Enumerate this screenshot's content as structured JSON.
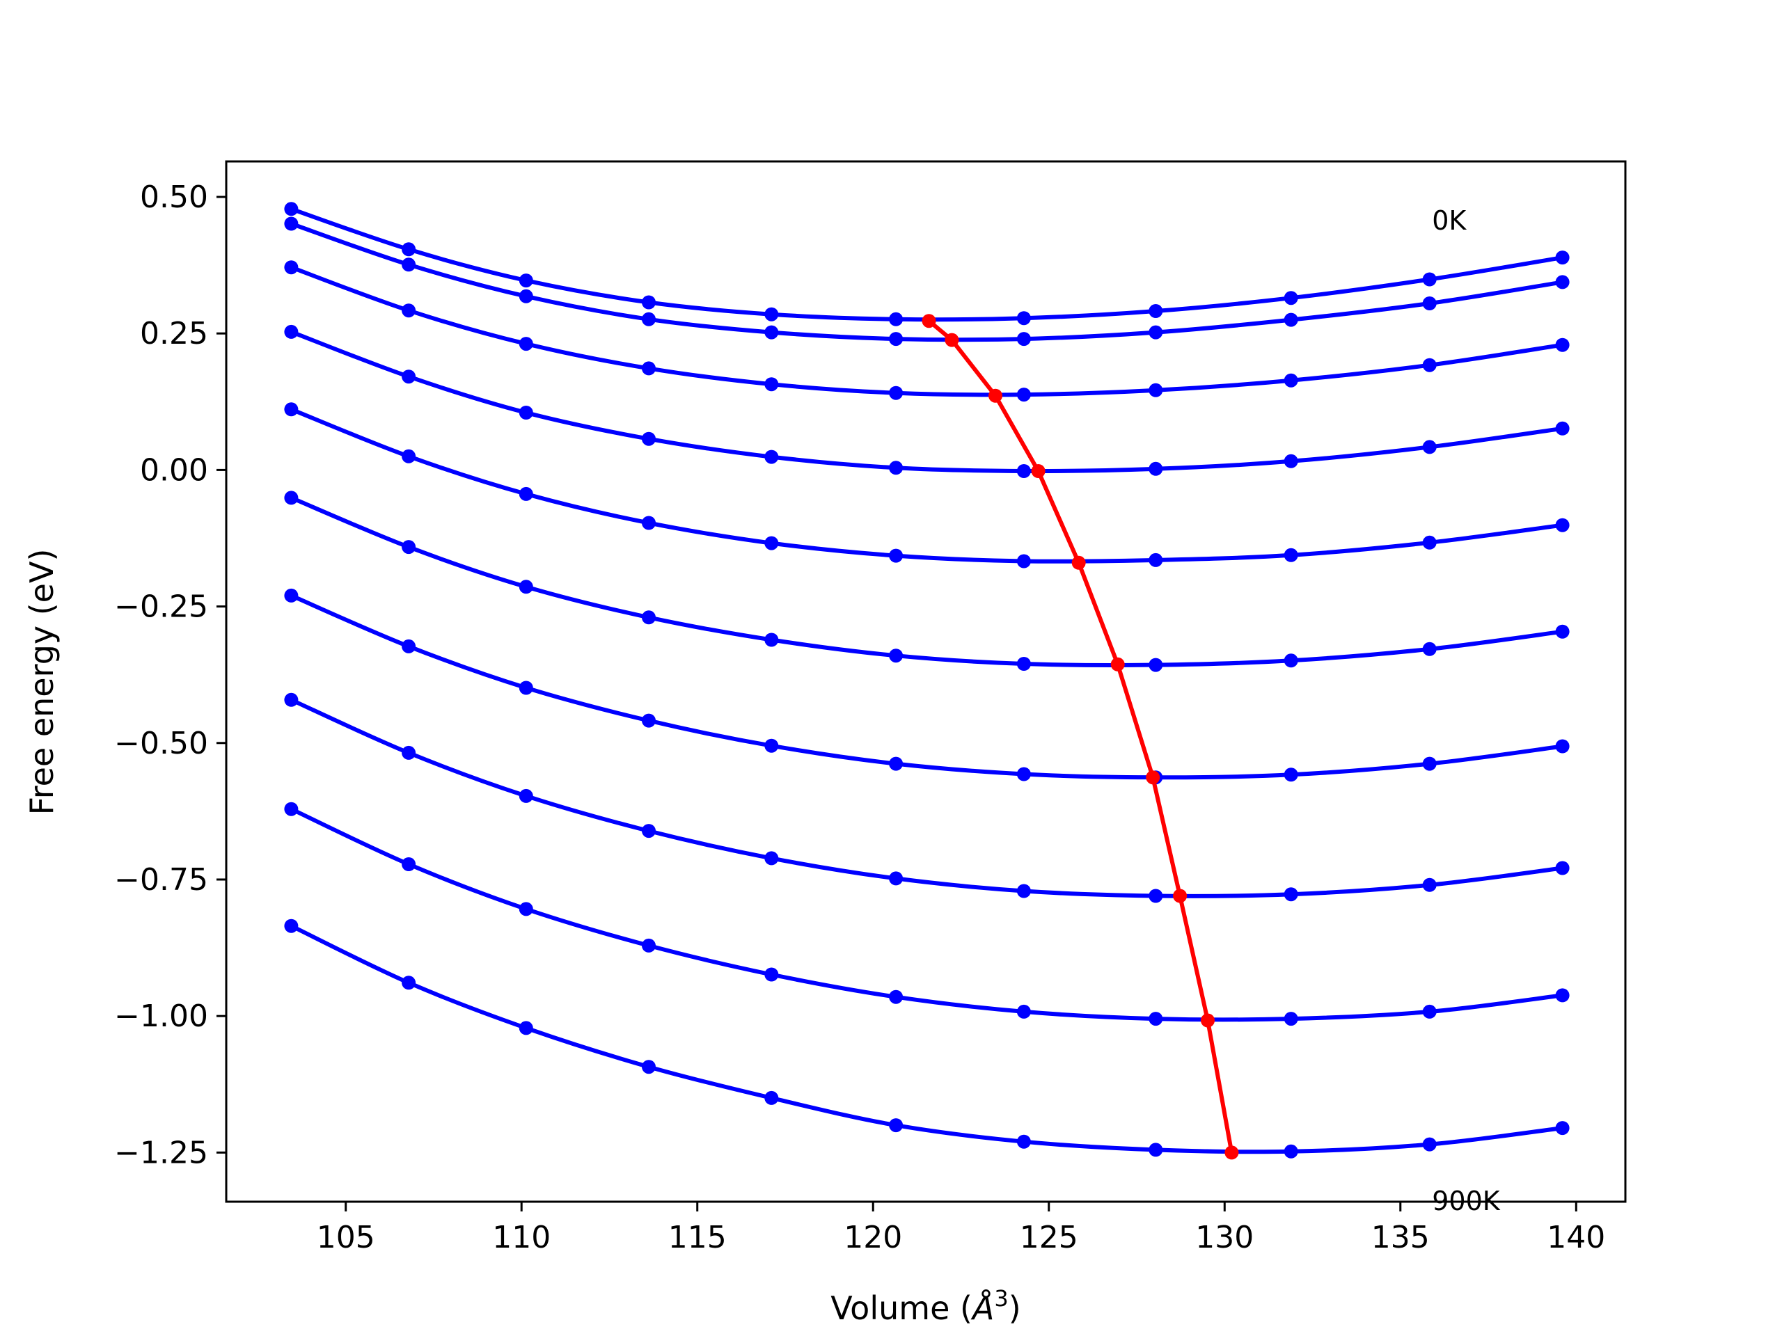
{
  "chart_data": {
    "type": "line",
    "title": "",
    "xlabel_prefix": "Volume (",
    "xlabel_symbol": "Å",
    "xlabel_exp": "3",
    "xlabel_suffix": ")",
    "ylabel": "Free energy (eV)",
    "xlim": [
      101.6,
      141.4
    ],
    "ylim": [
      -1.34,
      0.565
    ],
    "xticks": [
      105,
      110,
      115,
      120,
      125,
      130,
      135,
      140
    ],
    "yticks": [
      0.5,
      0.25,
      0.0,
      -0.25,
      -0.5,
      -0.75,
      -1.0,
      -1.25
    ],
    "ytick_labels": [
      "0.50",
      "0.25",
      "0.00",
      "−0.25",
      "−0.50",
      "−0.75",
      "−1.00",
      "−1.25"
    ],
    "grid": false,
    "legend": "none",
    "annotations": [
      {
        "text": "0K",
        "x": 135.9,
        "y": 0.44
      },
      {
        "text": "900K",
        "x": 135.9,
        "y": -1.355
      }
    ],
    "x": [
      103.45,
      106.79,
      110.13,
      113.62,
      117.11,
      120.65,
      124.29,
      128.04,
      131.89,
      135.83,
      139.61
    ],
    "series": [
      {
        "values": [
          0.478,
          0.404,
          0.347,
          0.307,
          0.285,
          0.276,
          0.278,
          0.291,
          0.315,
          0.349,
          0.389
        ]
      },
      {
        "values": [
          0.451,
          0.376,
          0.318,
          0.276,
          0.252,
          0.24,
          0.24,
          0.252,
          0.275,
          0.305,
          0.344
        ]
      },
      {
        "values": [
          0.371,
          0.292,
          0.231,
          0.186,
          0.157,
          0.141,
          0.138,
          0.146,
          0.164,
          0.192,
          0.229
        ]
      },
      {
        "values": [
          0.253,
          0.171,
          0.105,
          0.057,
          0.024,
          0.004,
          -0.002,
          0.002,
          0.016,
          0.042,
          0.076
        ]
      },
      {
        "values": [
          0.111,
          0.025,
          -0.044,
          -0.097,
          -0.134,
          -0.157,
          -0.167,
          -0.165,
          -0.156,
          -0.133,
          -0.101
        ]
      },
      {
        "values": [
          -0.051,
          -0.141,
          -0.214,
          -0.27,
          -0.311,
          -0.34,
          -0.355,
          -0.357,
          -0.349,
          -0.328,
          -0.296
        ]
      },
      {
        "values": [
          -0.23,
          -0.323,
          -0.399,
          -0.459,
          -0.505,
          -0.538,
          -0.557,
          -0.563,
          -0.558,
          -0.538,
          -0.506
        ]
      },
      {
        "values": [
          -0.421,
          -0.518,
          -0.597,
          -0.661,
          -0.711,
          -0.748,
          -0.771,
          -0.78,
          -0.777,
          -0.76,
          -0.729
        ]
      },
      {
        "values": [
          -0.621,
          -0.722,
          -0.804,
          -0.871,
          -0.924,
          -0.965,
          -0.992,
          -1.005,
          -1.005,
          -0.992,
          -0.962
        ]
      },
      {
        "values": [
          -0.835,
          -0.939,
          -1.022,
          -1.093,
          -1.15,
          -1.2,
          -1.23,
          -1.245,
          -1.248,
          -1.235,
          -1.205
        ]
      }
    ],
    "minima": {
      "x": [
        121.59,
        122.24,
        123.48,
        124.7,
        125.85,
        126.96,
        127.96,
        128.73,
        129.52,
        130.2
      ],
      "y": [
        0.273,
        0.238,
        0.136,
        -0.002,
        -0.17,
        -0.356,
        -0.563,
        -0.78,
        -1.008,
        -1.25
      ]
    },
    "colors": {
      "curves": "#0000ff",
      "minima": "#ff0000"
    }
  }
}
